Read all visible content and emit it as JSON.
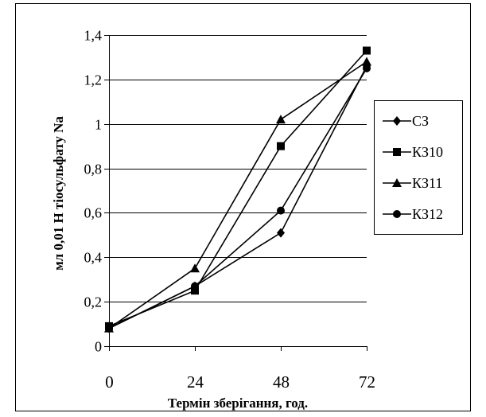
{
  "chart_data": {
    "type": "line",
    "title": "",
    "xlabel": "Термін зберігання, год.",
    "ylabel": "мл 0,01 Н тіосульфату Na",
    "x": [
      0,
      24,
      48,
      72
    ],
    "x_tick_labels": [
      "0",
      "24",
      "48",
      "72"
    ],
    "y_tick_labels": [
      "0",
      "0,2",
      "0,4",
      "0,6",
      "0,8",
      "1",
      "1,2",
      "1,4"
    ],
    "ylim": [
      0,
      1.4
    ],
    "y_ticks": [
      0,
      0.2,
      0.4,
      0.6,
      0.8,
      1.0,
      1.2,
      1.4
    ],
    "grid": "horizontal",
    "legend_position": "right",
    "series": [
      {
        "name": "СЗ",
        "marker": "diamond",
        "values": [
          0.08,
          0.27,
          0.51,
          1.26
        ]
      },
      {
        "name": "КЗ10",
        "marker": "square",
        "values": [
          0.09,
          0.25,
          0.9,
          1.33
        ]
      },
      {
        "name": "КЗ11",
        "marker": "triangle",
        "values": [
          0.08,
          0.35,
          1.02,
          1.28
        ]
      },
      {
        "name": "КЗ12",
        "marker": "circle",
        "values": [
          0.08,
          0.27,
          0.61,
          1.25
        ]
      }
    ],
    "line_color": "#000000"
  }
}
